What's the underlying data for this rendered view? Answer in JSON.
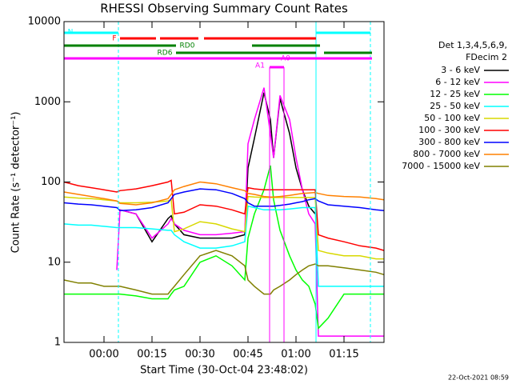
{
  "chart_data": {
    "type": "line",
    "title": "RHESSI Observing Summary Count Rates",
    "x_label": "Start Time (30-Oct-04 23:48:02)",
    "y_label": "Count Rate (s⁻¹ detector⁻¹)",
    "timestamp": "22-Oct-2021 08:59",
    "legend_header": [
      "Det 1,3,4,5,6,9,",
      "FDecim 2"
    ],
    "log_y": true,
    "xlim": [
      -12.5,
      87.5
    ],
    "xticks": [
      {
        "value": 0,
        "label": "00:00"
      },
      {
        "value": 15,
        "label": "00:15"
      },
      {
        "value": 30,
        "label": "00:30"
      },
      {
        "value": 45,
        "label": "00:45"
      },
      {
        "value": 60,
        "label": "01:00"
      },
      {
        "value": 75,
        "label": "01:15"
      }
    ],
    "ylim": [
      1,
      10000
    ],
    "yticks": [
      1,
      10,
      100,
      1000,
      10000
    ],
    "x": [
      -12.5,
      -8,
      -4,
      0,
      4,
      5,
      10,
      15,
      20,
      21,
      22,
      25,
      30,
      35,
      40,
      44,
      45,
      47,
      50,
      52,
      53,
      55,
      58,
      60,
      62,
      64,
      66,
      67,
      70,
      75,
      80,
      85,
      87.5
    ],
    "series": [
      {
        "name": "3 - 6 keV",
        "color": "#000000",
        "values": [
          null,
          null,
          null,
          null,
          null,
          45,
          40,
          18,
          35,
          38,
          30,
          22,
          20,
          20,
          20,
          22,
          150,
          350,
          1300,
          600,
          200,
          1100,
          400,
          150,
          80,
          50,
          40,
          null,
          null,
          null,
          null,
          null,
          null
        ]
      },
      {
        "name": "6 - 12 keV",
        "color": "#ff00ff",
        "values": [
          null,
          null,
          null,
          null,
          8,
          45,
          40,
          20,
          30,
          35,
          30,
          25,
          22,
          22,
          23,
          24,
          300,
          600,
          1500,
          400,
          200,
          1200,
          600,
          200,
          80,
          40,
          30,
          1.2,
          1.2,
          1.2,
          1.2,
          1.2,
          1.2
        ]
      },
      {
        "name": "12 - 25 keV",
        "color": "#00ff00",
        "values": [
          4,
          4,
          4,
          4,
          4,
          4,
          3.8,
          3.5,
          3.5,
          4,
          4.5,
          5,
          10,
          12,
          9,
          6,
          20,
          40,
          80,
          160,
          60,
          25,
          12,
          8,
          6,
          5,
          3,
          1.5,
          2,
          4,
          4,
          4,
          4
        ]
      },
      {
        "name": "25 - 50 keV",
        "color": "#00ffff",
        "values": [
          30,
          29,
          29,
          28,
          27,
          27,
          27,
          26,
          25,
          25,
          22,
          18,
          15,
          15,
          16,
          18,
          50,
          48,
          45,
          45,
          45,
          45,
          46,
          47,
          48,
          48,
          48,
          5,
          5,
          5,
          5,
          5,
          5
        ]
      },
      {
        "name": "50 - 100 keV",
        "color": "#d8d800",
        "values": [
          65,
          63,
          62,
          60,
          58,
          55,
          55,
          56,
          58,
          60,
          24,
          26,
          32,
          30,
          26,
          24,
          66,
          65,
          64,
          64,
          64,
          64,
          64,
          64,
          64,
          64,
          64,
          14,
          13,
          12,
          12,
          11,
          11
        ]
      },
      {
        "name": "100 - 300 keV",
        "color": "#ff0000",
        "values": [
          100,
          90,
          85,
          80,
          75,
          78,
          82,
          90,
          100,
          105,
          40,
          42,
          52,
          50,
          45,
          40,
          85,
          82,
          80,
          80,
          80,
          80,
          80,
          80,
          80,
          80,
          80,
          22,
          20,
          18,
          16,
          15,
          14
        ]
      },
      {
        "name": "300 - 800 keV",
        "color": "#0000ff",
        "values": [
          55,
          53,
          52,
          50,
          48,
          44,
          45,
          48,
          55,
          62,
          70,
          75,
          82,
          80,
          72,
          62,
          55,
          50,
          50,
          50,
          50,
          51,
          53,
          55,
          57,
          60,
          62,
          58,
          52,
          50,
          48,
          45,
          44
        ]
      },
      {
        "name": "800 - 7000 keV",
        "color": "#ff8000",
        "values": [
          75,
          70,
          66,
          62,
          58,
          54,
          52,
          55,
          62,
          70,
          80,
          88,
          100,
          95,
          85,
          78,
          72,
          70,
          66,
          65,
          65,
          66,
          68,
          70,
          72,
          73,
          74,
          72,
          68,
          66,
          65,
          62,
          60
        ]
      },
      {
        "name": "7000 - 15000 keV",
        "color": "#808000",
        "values": [
          6,
          5.5,
          5.5,
          5,
          5,
          5,
          4.5,
          4,
          4,
          4.5,
          5,
          7,
          12,
          14,
          12,
          9,
          6,
          5,
          4,
          4,
          4.5,
          5,
          6,
          7,
          8,
          9,
          9.5,
          9,
          9,
          8.5,
          8,
          7.5,
          7
        ]
      }
    ],
    "flags": [
      {
        "label": "N",
        "color": "#00ffff",
        "segments": [
          [
            -12.5,
            4.5
          ],
          [
            66.25,
            83.25
          ]
        ]
      },
      {
        "label": "F",
        "color": "#ff0000",
        "segments": [
          [
            5,
            16.25
          ],
          [
            17.5,
            29.5
          ],
          [
            31.25,
            66.25
          ]
        ]
      },
      {
        "label": "RD0",
        "color": "#008000",
        "segments": [
          [
            -12.5,
            22.5
          ],
          [
            46.25,
            67.5
          ]
        ]
      },
      {
        "label": "RD6",
        "color": "#008000",
        "segments": [
          [
            22.5,
            66.25
          ],
          [
            68.75,
            83.75
          ]
        ]
      },
      {
        "label": "A0",
        "color": "#ff00ff",
        "segments": [
          [
            -12.5,
            83.75
          ]
        ]
      },
      {
        "label": "A1",
        "color": "#ff00ff",
        "segments": [
          [
            51.75,
            56.25
          ]
        ]
      }
    ]
  }
}
